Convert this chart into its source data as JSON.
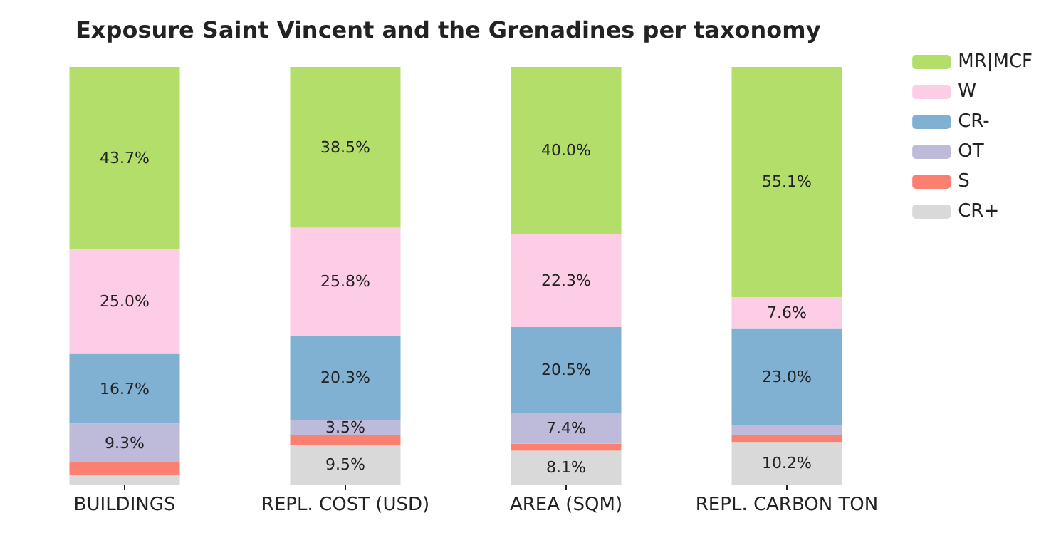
{
  "chart_data": {
    "type": "bar",
    "title": "Exposure Saint Vincent and the Grenadines per taxonomy",
    "categories": [
      "BUILDINGS",
      "REPL. COST (USD)",
      "AREA (SQM)",
      "REPL. CARBON TON"
    ],
    "stacked": true,
    "ylim": [
      0,
      100
    ],
    "tick_labels": "x",
    "legend": "top right",
    "grid": false,
    "series": [
      {
        "name": "CR+",
        "color": "#d9d9d9",
        "values": [
          2.4,
          9.5,
          8.1,
          10.2
        ],
        "value_labels": [
          null,
          "9.5%",
          "8.1%",
          "10.2%"
        ]
      },
      {
        "name": "S",
        "color": "#fb8072",
        "values": [
          2.9,
          2.4,
          1.7,
          1.7
        ],
        "value_labels": [
          null,
          null,
          null,
          null
        ]
      },
      {
        "name": "OT",
        "color": "#bebada",
        "values": [
          9.3,
          3.5,
          7.4,
          2.4
        ],
        "value_labels": [
          "9.3%",
          "3.5%",
          "7.4%",
          null
        ]
      },
      {
        "name": "CR-",
        "color": "#80b1d3",
        "values": [
          16.7,
          20.3,
          20.5,
          23.0
        ],
        "value_labels": [
          "16.7%",
          "20.3%",
          "20.5%",
          "23.0%"
        ]
      },
      {
        "name": "W",
        "color": "#fccde5",
        "values": [
          25.0,
          25.8,
          22.3,
          7.6
        ],
        "value_labels": [
          "25.0%",
          "25.8%",
          "22.3%",
          "7.6%"
        ]
      },
      {
        "name": "MR|MCF",
        "color": "#b3de69",
        "values": [
          43.7,
          38.5,
          40.0,
          55.1
        ],
        "value_labels": [
          "43.7%",
          "38.5%",
          "40.0%",
          "55.1%"
        ]
      }
    ]
  }
}
